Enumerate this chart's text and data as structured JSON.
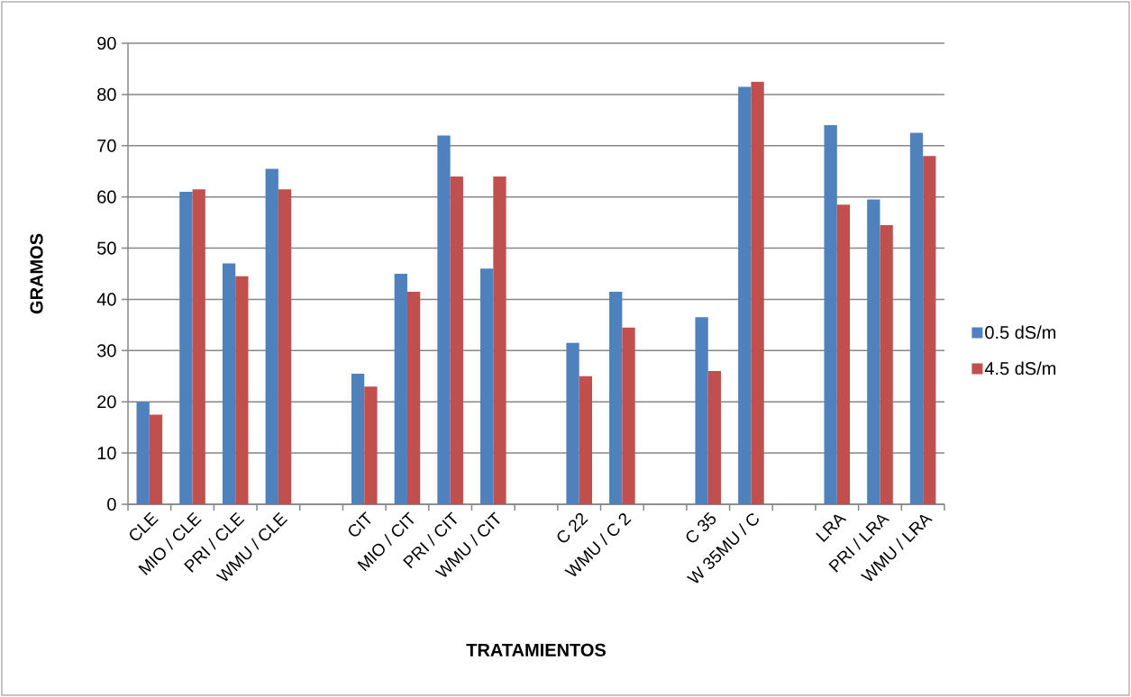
{
  "chart_data": {
    "type": "bar",
    "xlabel": "TRATAMIENTOS",
    "ylabel": "GRAMOS",
    "categories": [
      "CLE",
      "MIO / CLE",
      "PRI / CLE",
      "WMU / CLE",
      null,
      "CIT",
      "MIO / CIT",
      "PRI / CIT",
      "WMU / CIT",
      null,
      "C 22",
      "WMU / C 2",
      null,
      "C 35",
      "W 35MU / C",
      null,
      "LRA",
      "PRI / LRA",
      "WMU / LRA"
    ],
    "series": [
      {
        "name": "0.5 dS/m",
        "color": "#4f81bd",
        "values": [
          20,
          61,
          47,
          65.5,
          null,
          25.5,
          45,
          72,
          46,
          null,
          31.5,
          41.5,
          null,
          36.5,
          81.5,
          null,
          74,
          59.5,
          72.5
        ]
      },
      {
        "name": "4.5 dS/m",
        "color": "#c0504d",
        "values": [
          17.5,
          61.5,
          44.5,
          61.5,
          null,
          23,
          41.5,
          64,
          64,
          null,
          25,
          34.5,
          null,
          26,
          82.5,
          null,
          58.5,
          54.5,
          68
        ]
      }
    ],
    "ylim": [
      0,
      90
    ],
    "yticks": [
      0,
      10,
      20,
      30,
      40,
      50,
      60,
      70,
      80,
      90
    ],
    "grid": "y",
    "legend": "right"
  }
}
